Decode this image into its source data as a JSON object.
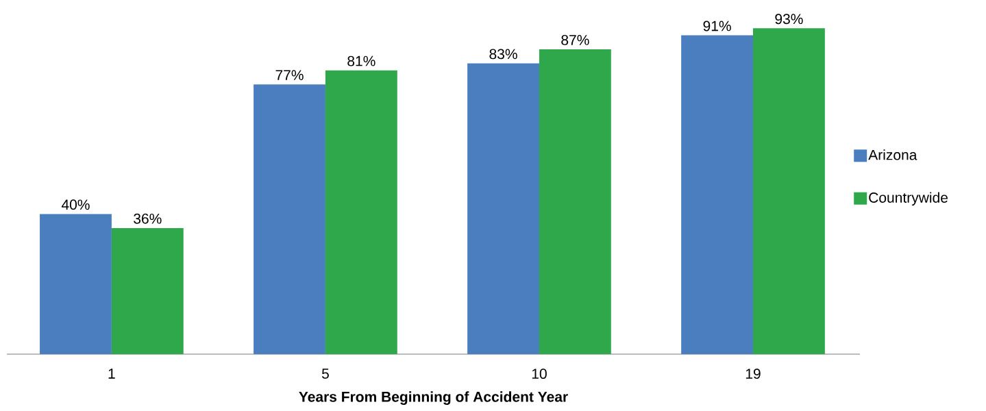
{
  "chart_data": {
    "type": "bar",
    "xlabel": "Years From Beginning of Accident Year",
    "categories": [
      "1",
      "5",
      "10",
      "19"
    ],
    "series": [
      {
        "name": "Arizona",
        "color": "#4a7ebf",
        "values": [
          40,
          77,
          83,
          91
        ],
        "value_labels": [
          "40%",
          "77%",
          "83%",
          "91%"
        ]
      },
      {
        "name": "Countrywide",
        "color": "#2ea84a",
        "values": [
          36,
          81,
          87,
          93
        ],
        "value_labels": [
          "36%",
          "81%",
          "87%",
          "93%"
        ]
      }
    ],
    "legend": "right"
  }
}
